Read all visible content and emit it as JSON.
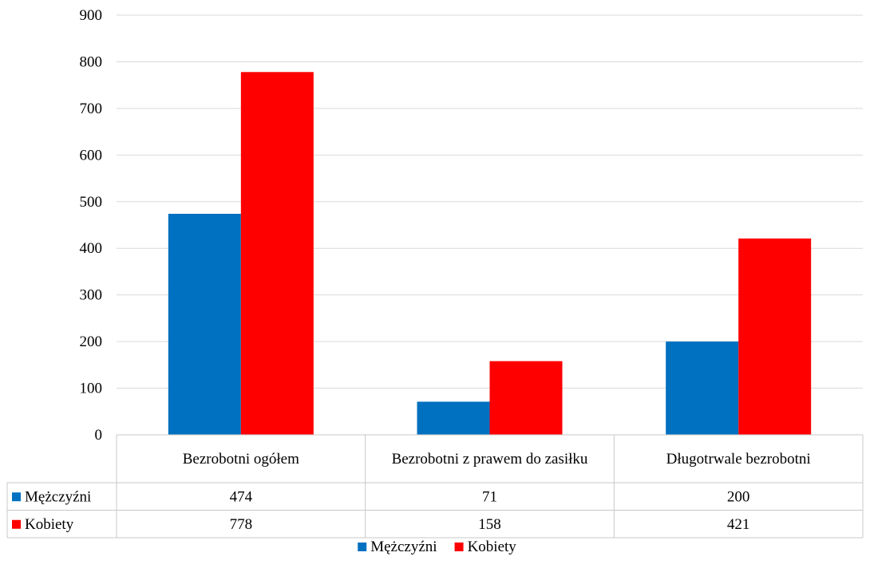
{
  "chart_data": {
    "type": "bar",
    "title": "",
    "xlabel": "",
    "ylabel": "",
    "categories": [
      "Bezrobotni ogółem",
      "Bezrobotni z prawem do zasiłku",
      "Długotrwale bezrobotni"
    ],
    "series": [
      {
        "name": "Mężczyźni",
        "color": "#0070C0",
        "values": [
          474,
          71,
          200
        ]
      },
      {
        "name": "Kobiety",
        "color": "#FF0000",
        "values": [
          778,
          158,
          421
        ]
      }
    ],
    "ylim": [
      0,
      900
    ],
    "yticks": [
      0,
      100,
      200,
      300,
      400,
      500,
      600,
      700,
      800,
      900
    ],
    "grid": true,
    "data_table": true,
    "legend_position": "bottom"
  }
}
